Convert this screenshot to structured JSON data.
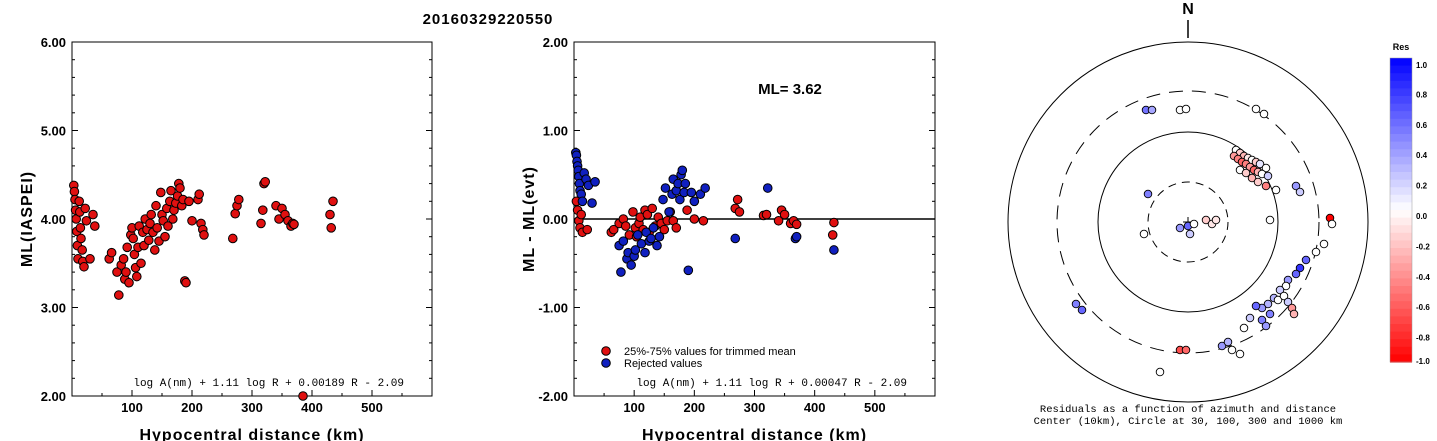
{
  "title": "20160329220550",
  "colors": {
    "used": "#e01010",
    "rejected": "#1020c0",
    "axis": "#000000"
  },
  "chart_data": [
    {
      "type": "scatter",
      "name_id": "ml-vs-distance",
      "xlabel": "Hypocentral distance (km)",
      "ylabel": "ML(IASPEI)",
      "xlim": [
        0,
        600
      ],
      "ylim": [
        2.0,
        6.0
      ],
      "x_ticks": [
        "100",
        "200",
        "300",
        "400",
        "500"
      ],
      "y_ticks": [
        "2.00",
        "3.00",
        "4.00",
        "5.00",
        "6.00"
      ],
      "formula": "log A(nm) + 1.11 log R + 0.00189 R - 2.09",
      "series": [
        {
          "points": [
            [
              3,
              4.38
            ],
            [
              4,
              4.31
            ],
            [
              5,
              4.22
            ],
            [
              6,
              4.1
            ],
            [
              7,
              4.0
            ],
            [
              8,
              3.86
            ],
            [
              9,
              3.7
            ],
            [
              10,
              3.55
            ],
            [
              12,
              4.2
            ],
            [
              13,
              4.08
            ],
            [
              14,
              3.9
            ],
            [
              15,
              3.78
            ],
            [
              17,
              3.65
            ],
            [
              18,
              3.52
            ],
            [
              20,
              3.46
            ],
            [
              22,
              4.12
            ],
            [
              24,
              3.98
            ],
            [
              30,
              3.55
            ],
            [
              35,
              4.05
            ],
            [
              38,
              3.92
            ],
            [
              62,
              3.55
            ],
            [
              66,
              3.62
            ],
            [
              75,
              3.4
            ],
            [
              78,
              3.14
            ],
            [
              82,
              3.48
            ],
            [
              86,
              3.55
            ],
            [
              88,
              3.32
            ],
            [
              90,
              3.4
            ],
            [
              92,
              3.68
            ],
            [
              95,
              3.28
            ],
            [
              98,
              3.82
            ],
            [
              100,
              3.9
            ],
            [
              102,
              3.78
            ],
            [
              104,
              3.6
            ],
            [
              106,
              3.45
            ],
            [
              108,
              3.35
            ],
            [
              110,
              3.68
            ],
            [
              112,
              3.92
            ],
            [
              115,
              3.5
            ],
            [
              118,
              3.85
            ],
            [
              120,
              3.7
            ],
            [
              122,
              4.0
            ],
            [
              125,
              3.88
            ],
            [
              128,
              3.76
            ],
            [
              130,
              3.95
            ],
            [
              132,
              4.05
            ],
            [
              135,
              3.85
            ],
            [
              138,
              3.65
            ],
            [
              140,
              4.15
            ],
            [
              142,
              3.9
            ],
            [
              145,
              3.75
            ],
            [
              148,
              4.3
            ],
            [
              150,
              4.05
            ],
            [
              152,
              3.98
            ],
            [
              155,
              3.8
            ],
            [
              158,
              4.12
            ],
            [
              160,
              3.92
            ],
            [
              163,
              4.2
            ],
            [
              165,
              4.32
            ],
            [
              168,
              4.0
            ],
            [
              170,
              4.1
            ],
            [
              173,
              4.18
            ],
            [
              176,
              4.26
            ],
            [
              178,
              4.4
            ],
            [
              180,
              4.35
            ],
            [
              183,
              4.15
            ],
            [
              185,
              4.22
            ],
            [
              188,
              3.3
            ],
            [
              190,
              3.28
            ],
            [
              195,
              4.2
            ],
            [
              200,
              3.98
            ],
            [
              210,
              4.22
            ],
            [
              212,
              4.28
            ],
            [
              215,
              3.95
            ],
            [
              218,
              3.88
            ],
            [
              220,
              3.82
            ],
            [
              268,
              3.78
            ],
            [
              272,
              4.06
            ],
            [
              275,
              4.15
            ],
            [
              278,
              4.22
            ],
            [
              315,
              3.95
            ],
            [
              318,
              4.1
            ],
            [
              320,
              4.4
            ],
            [
              322,
              4.42
            ],
            [
              340,
              4.15
            ],
            [
              345,
              4.0
            ],
            [
              350,
              4.12
            ],
            [
              355,
              4.05
            ],
            [
              360,
              3.98
            ],
            [
              365,
              3.92
            ],
            [
              368,
              3.95
            ],
            [
              370,
              3.94
            ],
            [
              385,
              2.0
            ],
            [
              430,
              4.05
            ],
            [
              432,
              3.9
            ],
            [
              435,
              4.2
            ]
          ]
        }
      ]
    },
    {
      "type": "scatter",
      "name_id": "residual-vs-distance",
      "xlabel": "Hypocentral distance (km)",
      "ylabel": "ML - ML(evt)",
      "xlim": [
        0,
        600
      ],
      "ylim": [
        -2.0,
        2.0
      ],
      "x_ticks": [
        "100",
        "200",
        "300",
        "400",
        "500"
      ],
      "y_ticks": [
        "-2.00",
        "-1.00",
        "0.00",
        "1.00",
        "2.00"
      ],
      "ml_label": "ML= 3.62",
      "formula": "log A(nm) + 1.11 log R + 0.00047 R - 2.09",
      "legend": [
        {
          "label": "25%-75% values for trimmed mean",
          "series": "used"
        },
        {
          "label": "Rejected values",
          "series": "rejected"
        }
      ],
      "series": [
        {
          "name": "25%-75% values for trimmed mean",
          "key": "used",
          "points": [
            [
              4,
              0.2
            ],
            [
              6,
              0.1
            ],
            [
              8,
              -0.02
            ],
            [
              10,
              -0.1
            ],
            [
              12,
              0.05
            ],
            [
              14,
              -0.15
            ],
            [
              22,
              -0.12
            ],
            [
              62,
              -0.15
            ],
            [
              66,
              -0.12
            ],
            [
              75,
              -0.05
            ],
            [
              82,
              0.0
            ],
            [
              86,
              -0.08
            ],
            [
              92,
              -0.18
            ],
            [
              98,
              0.08
            ],
            [
              102,
              -0.1
            ],
            [
              104,
              -0.2
            ],
            [
              108,
              -0.05
            ],
            [
              110,
              0.02
            ],
            [
              115,
              -0.12
            ],
            [
              118,
              0.1
            ],
            [
              122,
              0.05
            ],
            [
              125,
              -0.15
            ],
            [
              130,
              0.12
            ],
            [
              135,
              -0.08
            ],
            [
              140,
              0.02
            ],
            [
              145,
              -0.05
            ],
            [
              150,
              -0.12
            ],
            [
              155,
              -0.02
            ],
            [
              160,
              0.08
            ],
            [
              165,
              -0.02
            ],
            [
              170,
              -0.1
            ],
            [
              188,
              0.1
            ],
            [
              200,
              0.0
            ],
            [
              215,
              -0.02
            ],
            [
              268,
              0.12
            ],
            [
              272,
              0.22
            ],
            [
              275,
              0.08
            ],
            [
              315,
              0.04
            ],
            [
              320,
              0.05
            ],
            [
              340,
              -0.02
            ],
            [
              345,
              0.1
            ],
            [
              350,
              0.05
            ],
            [
              360,
              -0.05
            ],
            [
              365,
              -0.02
            ],
            [
              370,
              -0.06
            ],
            [
              430,
              -0.18
            ],
            [
              432,
              -0.04
            ]
          ]
        },
        {
          "name": "Rejected values",
          "key": "rejected",
          "points": [
            [
              3,
              0.75
            ],
            [
              4,
              0.72
            ],
            [
              5,
              0.65
            ],
            [
              6,
              0.6
            ],
            [
              7,
              0.55
            ],
            [
              8,
              0.48
            ],
            [
              9,
              0.4
            ],
            [
              10,
              0.32
            ],
            [
              12,
              0.28
            ],
            [
              14,
              0.2
            ],
            [
              17,
              0.52
            ],
            [
              20,
              0.45
            ],
            [
              24,
              0.38
            ],
            [
              30,
              0.18
            ],
            [
              35,
              0.42
            ],
            [
              75,
              -0.3
            ],
            [
              78,
              -0.6
            ],
            [
              82,
              -0.25
            ],
            [
              88,
              -0.45
            ],
            [
              90,
              -0.38
            ],
            [
              95,
              -0.52
            ],
            [
              100,
              -0.42
            ],
            [
              102,
              -0.35
            ],
            [
              106,
              -0.18
            ],
            [
              112,
              -0.28
            ],
            [
              118,
              -0.38
            ],
            [
              120,
              -0.15
            ],
            [
              125,
              -0.25
            ],
            [
              128,
              -0.22
            ],
            [
              132,
              -0.1
            ],
            [
              138,
              -0.3
            ],
            [
              142,
              -0.2
            ],
            [
              148,
              0.22
            ],
            [
              152,
              0.35
            ],
            [
              158,
              0.08
            ],
            [
              163,
              0.28
            ],
            [
              165,
              0.45
            ],
            [
              170,
              0.32
            ],
            [
              173,
              0.4
            ],
            [
              176,
              0.22
            ],
            [
              178,
              0.5
            ],
            [
              180,
              0.55
            ],
            [
              183,
              0.3
            ],
            [
              185,
              0.4
            ],
            [
              190,
              -0.58
            ],
            [
              195,
              0.3
            ],
            [
              200,
              0.2
            ],
            [
              210,
              0.28
            ],
            [
              218,
              0.35
            ],
            [
              268,
              -0.22
            ],
            [
              322,
              0.35
            ],
            [
              368,
              -0.22
            ],
            [
              370,
              -0.2
            ],
            [
              432,
              -0.35
            ]
          ]
        }
      ]
    }
  ],
  "polar": {
    "north_label": "N",
    "caption_line1": "Residuals as a function of azimuth and distance",
    "caption_line2": "Center (10km), Circle at 30, 100, 300 and 1000 km",
    "colorbar_title": "Res",
    "colorbar_ticks": [
      "1.0",
      "0.8",
      "0.6",
      "0.4",
      "0.2",
      "0.0",
      "-0.2",
      "-0.4",
      "-0.6",
      "-0.8",
      "-1.0"
    ],
    "stations": [
      [
        -42,
        -112,
        0.55
      ],
      [
        -36,
        -112,
        0.35
      ],
      [
        -8,
        -112,
        0.0
      ],
      [
        -2,
        -113,
        0.0
      ],
      [
        68,
        -113,
        0.0
      ],
      [
        76,
        -108,
        0.0
      ],
      [
        48,
        -72,
        0.0
      ],
      [
        52,
        -69,
        -0.2
      ],
      [
        56,
        -66,
        -0.3
      ],
      [
        60,
        -64,
        -0.1
      ],
      [
        64,
        -62,
        0.0
      ],
      [
        68,
        -60,
        -0.2
      ],
      [
        72,
        -58,
        0.1
      ],
      [
        78,
        -54,
        0.0
      ],
      [
        46,
        -66,
        -0.4
      ],
      [
        50,
        -63,
        -0.5
      ],
      [
        54,
        -60,
        -0.6
      ],
      [
        58,
        -58,
        -0.5
      ],
      [
        62,
        -55,
        -0.4
      ],
      [
        66,
        -52,
        -0.6
      ],
      [
        70,
        -50,
        -0.3
      ],
      [
        74,
        -48,
        0.0
      ],
      [
        80,
        -46,
        0.2
      ],
      [
        52,
        -52,
        0.0
      ],
      [
        58,
        -49,
        -0.2
      ],
      [
        64,
        -44,
        -0.3
      ],
      [
        70,
        -40,
        -0.2
      ],
      [
        78,
        -36,
        -0.5
      ],
      [
        88,
        -32,
        0.0
      ],
      [
        108,
        -36,
        0.4
      ],
      [
        112,
        -30,
        0.2
      ],
      [
        82,
        -2,
        0.0
      ],
      [
        -40,
        -28,
        0.5
      ],
      [
        -44,
        12,
        0.0
      ],
      [
        -8,
        6,
        0.4
      ],
      [
        0,
        4,
        0.6
      ],
      [
        2,
        12,
        0.2
      ],
      [
        18,
        -2,
        -0.2
      ],
      [
        24,
        2,
        -0.1
      ],
      [
        28,
        -2,
        -0.1
      ],
      [
        6,
        2,
        0.0
      ],
      [
        142,
        -4,
        -1.0
      ],
      [
        144,
        2,
        0.0
      ],
      [
        136,
        22,
        0.0
      ],
      [
        128,
        30,
        0.0
      ],
      [
        118,
        38,
        0.6
      ],
      [
        112,
        46,
        0.8
      ],
      [
        108,
        52,
        0.6
      ],
      [
        100,
        58,
        0.4
      ],
      [
        98,
        64,
        0.0
      ],
      [
        92,
        68,
        0.2
      ],
      [
        86,
        76,
        0.3
      ],
      [
        80,
        82,
        0.3
      ],
      [
        74,
        86,
        0.4
      ],
      [
        90,
        78,
        0.0
      ],
      [
        96,
        74,
        0.0
      ],
      [
        100,
        80,
        0.2
      ],
      [
        104,
        86,
        -0.4
      ],
      [
        106,
        92,
        -0.3
      ],
      [
        82,
        92,
        0.5
      ],
      [
        74,
        98,
        0.5
      ],
      [
        68,
        84,
        0.6
      ],
      [
        62,
        96,
        0.2
      ],
      [
        56,
        106,
        0.0
      ],
      [
        78,
        104,
        0.4
      ],
      [
        -112,
        82,
        0.5
      ],
      [
        -106,
        88,
        0.6
      ],
      [
        -8,
        128,
        -0.7
      ],
      [
        -2,
        128,
        -0.6
      ],
      [
        34,
        124,
        0.4
      ],
      [
        40,
        120,
        0.3
      ],
      [
        44,
        128,
        0.0
      ],
      [
        52,
        132,
        0.0
      ],
      [
        -28,
        150,
        0.0
      ]
    ]
  }
}
